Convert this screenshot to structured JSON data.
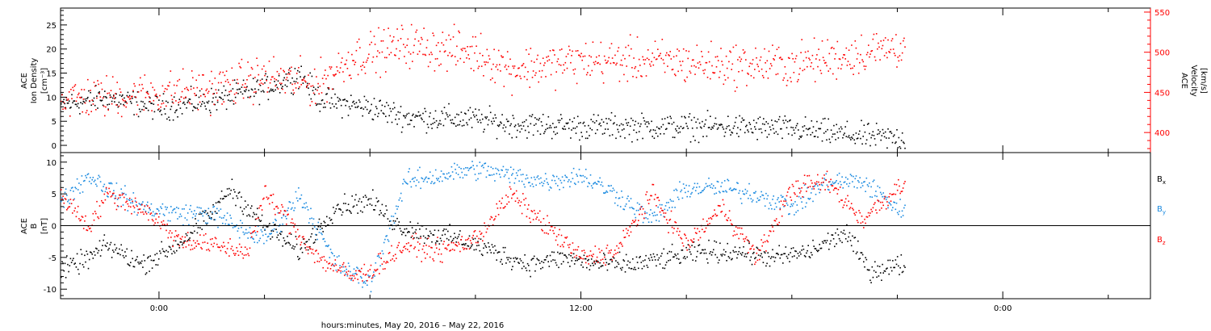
{
  "figure": {
    "xlabel": "hours:minutes, May 20, 2016 – May 22, 2016",
    "x_tick_labels": [
      "0:00",
      "12:00",
      "0:00"
    ],
    "x_ticks_hours": [
      0,
      12,
      24
    ],
    "x_range_hours": [
      -2.8,
      28.2
    ],
    "data_end_hours": 21.2
  },
  "chart_data": [
    {
      "type": "scatter",
      "title": "",
      "ylabel_left": [
        "ACE",
        "Ion Density",
        "[cm⁻³]"
      ],
      "ylabel_right": [
        "ACE",
        "Velocity",
        "[km/s]"
      ],
      "y_left_range": [
        -1.5,
        28.5
      ],
      "y_left_ticks": [
        0,
        5,
        10,
        15,
        20,
        25
      ],
      "y_right_range": [
        375,
        555
      ],
      "y_right_ticks": [
        400,
        450,
        500,
        550
      ],
      "series": [
        {
          "label": "Ion Density",
          "axis": "left",
          "color": "#000000",
          "x_hours": [
            -2.8,
            -1.5,
            0,
            1.5,
            3,
            4,
            4.5,
            5,
            6,
            7,
            9,
            10,
            12,
            14,
            16,
            18,
            20,
            21.2
          ],
          "values": [
            8.5,
            10,
            8,
            9.5,
            12,
            15,
            10,
            9,
            8,
            6,
            5.5,
            4.5,
            4,
            4,
            4,
            3.5,
            2,
            1.5
          ]
        },
        {
          "label": "Velocity",
          "axis": "right",
          "color": "#ff0000",
          "x_hours": [
            -2.8,
            -1.5,
            0,
            1.5,
            3,
            4.5,
            5.5,
            7,
            8,
            9,
            10,
            12,
            14,
            16,
            18,
            20,
            21.2
          ],
          "values": [
            443,
            445,
            450,
            455,
            470,
            460,
            495,
            510,
            505,
            500,
            480,
            490,
            490,
            485,
            485,
            500,
            510
          ]
        }
      ]
    },
    {
      "type": "scatter",
      "title": "",
      "ylabel_left": [
        "ACE",
        "B",
        "[nT]"
      ],
      "y_range": [
        -11.5,
        11.5
      ],
      "y_ticks": [
        -10,
        -5,
        0,
        5,
        10
      ],
      "zero_line": true,
      "legend_position": "right",
      "series": [
        {
          "name": "Bx",
          "color": "#000000",
          "x_hours": [
            -2.8,
            -2,
            -1.5,
            -0.5,
            0.5,
            1.5,
            2,
            3,
            4,
            5,
            6,
            6.8,
            7.5,
            8.5,
            9.5,
            10.5,
            11.5,
            12.5,
            13.5,
            14.5,
            15.5,
            16.5,
            17.5,
            18.5,
            19.5,
            20.2,
            21.2
          ],
          "values": [
            -7,
            -5,
            -3,
            -6,
            -3,
            2,
            6,
            0,
            -4,
            3,
            4,
            0,
            -1,
            -2,
            -4,
            -6,
            -5,
            -6,
            -6,
            -5,
            -4,
            -4,
            -5,
            -4,
            -1,
            -7,
            -6
          ]
        },
        {
          "name": "By",
          "color": "#1a8ae0",
          "x_hours": [
            -2.8,
            -2,
            -1.2,
            -0.5,
            0.5,
            1.5,
            2.5,
            3,
            4,
            5,
            6,
            7,
            8,
            9,
            10,
            11,
            12,
            13,
            14,
            15,
            16,
            17,
            18,
            19,
            20,
            21.2
          ],
          "values": [
            4,
            8,
            5,
            3,
            2,
            2,
            -1,
            -2,
            5,
            -6,
            -9,
            7,
            8,
            9,
            8,
            7,
            8,
            5,
            1,
            6,
            6,
            5,
            3,
            7,
            7,
            2
          ]
        },
        {
          "name": "Bz",
          "color": "#ff0000",
          "x_hours": [
            -2.8,
            -2,
            -1.5,
            -0.5,
            0.5,
            1.5,
            2.5,
            3,
            3.5,
            4.5,
            5.5,
            6,
            7,
            8,
            9,
            10,
            11,
            12,
            13,
            14,
            15,
            16,
            17,
            18,
            19,
            20,
            21.2
          ],
          "values": [
            5,
            0,
            5,
            3,
            -2,
            -3,
            -4,
            5,
            2,
            -5,
            -8,
            -7,
            -3,
            -4,
            -2,
            5,
            0,
            -5,
            -4,
            5,
            -3,
            3,
            -5,
            6,
            7,
            1,
            7
          ]
        }
      ]
    }
  ]
}
